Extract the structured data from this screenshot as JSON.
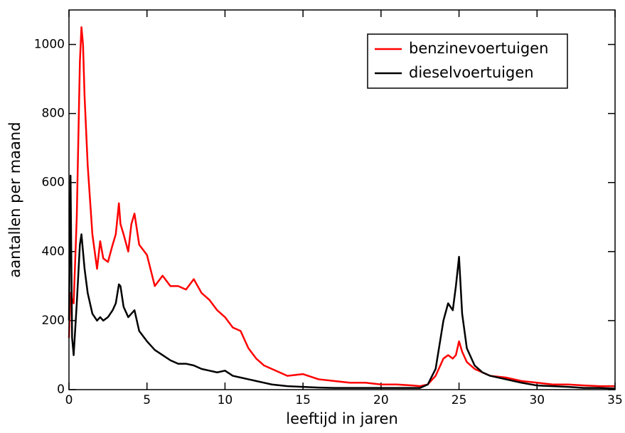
{
  "chart_data": {
    "type": "line",
    "xlabel": "leeftijd in jaren",
    "ylabel": "aantallen per maand",
    "xlim": [
      0,
      35
    ],
    "ylim": [
      0,
      1100
    ],
    "xticks": [
      0,
      5,
      10,
      15,
      20,
      25,
      30,
      35
    ],
    "yticks": [
      0,
      200,
      400,
      600,
      800,
      1000
    ],
    "legend": "upper right",
    "x": [
      0,
      0.1,
      0.2,
      0.3,
      0.5,
      0.7,
      0.8,
      0.9,
      1.0,
      1.2,
      1.5,
      1.8,
      2.0,
      2.2,
      2.5,
      2.8,
      3.0,
      3.2,
      3.3,
      3.5,
      3.8,
      4.0,
      4.2,
      4.5,
      5.0,
      5.5,
      6.0,
      6.5,
      7.0,
      7.5,
      8.0,
      8.5,
      9.0,
      9.5,
      10.0,
      10.5,
      11.0,
      11.5,
      12.0,
      12.5,
      13.0,
      14.0,
      15.0,
      16.0,
      17.0,
      18.0,
      19.0,
      20.0,
      21.0,
      22.0,
      22.5,
      23.0,
      23.5,
      24.0,
      24.3,
      24.6,
      24.8,
      25.0,
      25.2,
      25.5,
      26.0,
      26.5,
      27.0,
      28.0,
      29.0,
      30.0,
      31.0,
      32.0,
      33.0,
      34.0,
      35.0
    ],
    "series": [
      {
        "name": "benzinevoertuigen",
        "color": "#ff0000",
        "values": [
          150,
          280,
          260,
          250,
          500,
          950,
          1050,
          1000,
          850,
          650,
          450,
          350,
          430,
          380,
          370,
          420,
          450,
          540,
          480,
          450,
          400,
          480,
          510,
          420,
          390,
          300,
          330,
          300,
          300,
          290,
          320,
          280,
          260,
          230,
          210,
          180,
          170,
          120,
          90,
          70,
          60,
          40,
          45,
          30,
          25,
          20,
          20,
          15,
          15,
          12,
          10,
          15,
          40,
          90,
          100,
          90,
          100,
          140,
          110,
          80,
          60,
          50,
          40,
          35,
          25,
          20,
          15,
          15,
          12,
          10,
          10
        ]
      },
      {
        "name": "dieselvoertuigen",
        "color": "#000000",
        "values": [
          200,
          620,
          150,
          100,
          250,
          420,
          450,
          400,
          350,
          280,
          220,
          200,
          210,
          200,
          210,
          230,
          250,
          305,
          300,
          240,
          210,
          220,
          230,
          170,
          140,
          115,
          100,
          85,
          75,
          75,
          70,
          60,
          55,
          50,
          55,
          40,
          35,
          30,
          25,
          20,
          15,
          10,
          8,
          6,
          5,
          5,
          5,
          5,
          5,
          5,
          5,
          15,
          60,
          200,
          250,
          230,
          300,
          385,
          220,
          120,
          70,
          50,
          40,
          30,
          20,
          12,
          10,
          8,
          5,
          5,
          3
        ]
      }
    ]
  }
}
